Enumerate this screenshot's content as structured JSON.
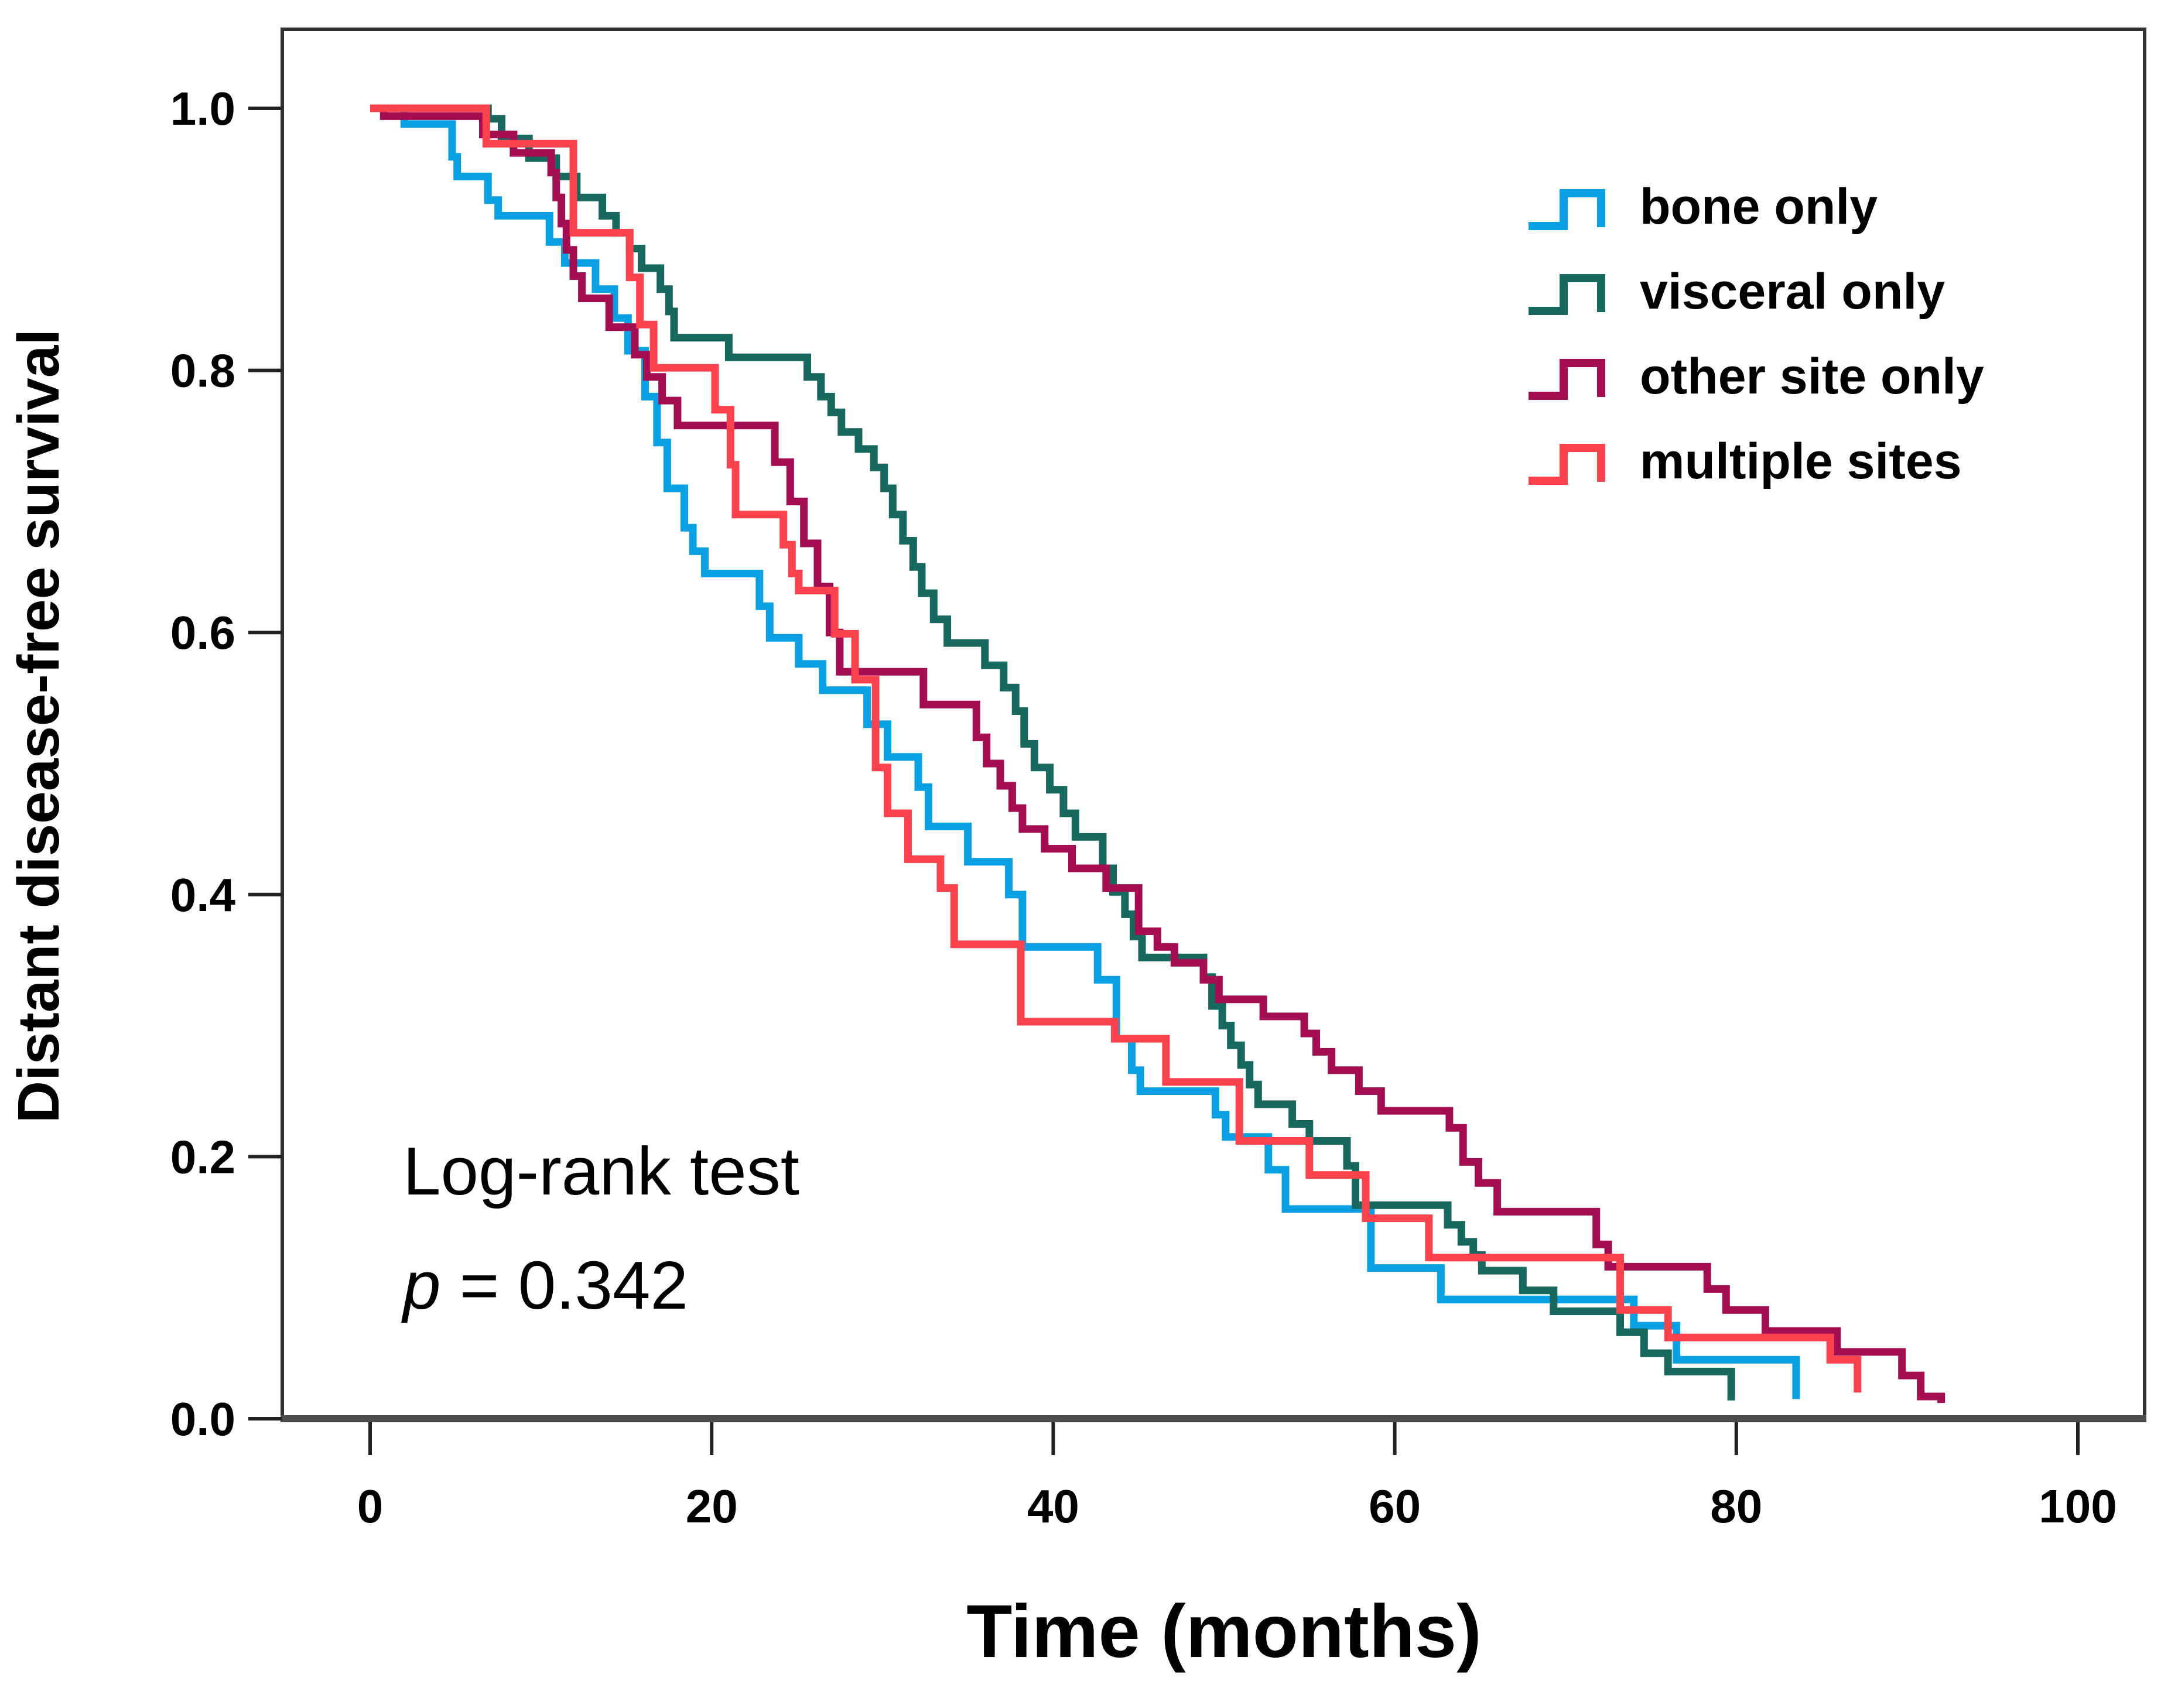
{
  "chart_data": {
    "type": "line",
    "subtype": "kaplan-meier-step",
    "title": "",
    "xlabel": "Time (months)",
    "ylabel": "Distant disease-free survival",
    "xlim": [
      0,
      100
    ],
    "ylim": [
      0.0,
      1.0
    ],
    "xticks": [
      0,
      20,
      40,
      60,
      80,
      100
    ],
    "yticks": [
      "0.0",
      "0.2",
      "0.4",
      "0.6",
      "0.8",
      "1.0"
    ],
    "grid": "off",
    "legend_position": "upper right",
    "annotation": {
      "line1": "Log-rank test",
      "p_symbol": "p",
      "p_rest": " = 0.342"
    },
    "legend": [
      "bone only",
      "visceral only",
      "other site only",
      "multiple sites"
    ],
    "series": [
      {
        "name": "bone only",
        "color": "#0AA1E4",
        "points": [
          [
            0,
            1.0
          ],
          [
            2,
            0.988
          ],
          [
            4.8,
            0.963
          ],
          [
            5.1,
            0.948
          ],
          [
            6.9,
            0.93
          ],
          [
            7.5,
            0.918
          ],
          [
            10.5,
            0.898
          ],
          [
            11.4,
            0.882
          ],
          [
            13.2,
            0.862
          ],
          [
            14.3,
            0.84
          ],
          [
            15.1,
            0.815
          ],
          [
            16.1,
            0.78
          ],
          [
            16.8,
            0.745
          ],
          [
            17.4,
            0.71
          ],
          [
            18.4,
            0.68
          ],
          [
            18.9,
            0.662
          ],
          [
            19.6,
            0.645
          ],
          [
            22.8,
            0.62
          ],
          [
            23.4,
            0.596
          ],
          [
            25.1,
            0.576
          ],
          [
            26.5,
            0.556
          ],
          [
            29.1,
            0.53
          ],
          [
            30.3,
            0.505
          ],
          [
            32.1,
            0.482
          ],
          [
            32.7,
            0.452
          ],
          [
            35,
            0.425
          ],
          [
            37.4,
            0.4
          ],
          [
            38.2,
            0.36
          ],
          [
            42.6,
            0.335
          ],
          [
            43.7,
            0.29
          ],
          [
            44.6,
            0.266
          ],
          [
            45.1,
            0.25
          ],
          [
            49.5,
            0.232
          ],
          [
            50.1,
            0.215
          ],
          [
            52.6,
            0.19
          ],
          [
            53.6,
            0.16
          ],
          [
            58.6,
            0.115
          ],
          [
            62.7,
            0.091
          ],
          [
            74,
            0.071
          ],
          [
            76.5,
            0.045
          ],
          [
            83.5,
            0.015
          ]
        ]
      },
      {
        "name": "visceral only",
        "color": "#17685F",
        "points": [
          [
            0,
            1.0
          ],
          [
            6.9,
            0.992
          ],
          [
            7.7,
            0.977
          ],
          [
            9.3,
            0.962
          ],
          [
            10.9,
            0.948
          ],
          [
            12.1,
            0.932
          ],
          [
            13.6,
            0.918
          ],
          [
            14.4,
            0.905
          ],
          [
            15.2,
            0.893
          ],
          [
            15.9,
            0.878
          ],
          [
            17,
            0.862
          ],
          [
            17.5,
            0.845
          ],
          [
            17.8,
            0.825
          ],
          [
            21,
            0.81
          ],
          [
            25.6,
            0.795
          ],
          [
            26.4,
            0.78
          ],
          [
            27,
            0.768
          ],
          [
            27.6,
            0.753
          ],
          [
            28.6,
            0.74
          ],
          [
            29.5,
            0.726
          ],
          [
            30.1,
            0.71
          ],
          [
            30.6,
            0.69
          ],
          [
            31.2,
            0.67
          ],
          [
            31.8,
            0.65
          ],
          [
            32.3,
            0.63
          ],
          [
            33,
            0.61
          ],
          [
            33.8,
            0.592
          ],
          [
            36,
            0.575
          ],
          [
            37.1,
            0.558
          ],
          [
            37.8,
            0.54
          ],
          [
            38.3,
            0.515
          ],
          [
            38.9,
            0.497
          ],
          [
            39.8,
            0.48
          ],
          [
            40.6,
            0.462
          ],
          [
            41.3,
            0.444
          ],
          [
            42.9,
            0.42
          ],
          [
            43.5,
            0.402
          ],
          [
            44.2,
            0.385
          ],
          [
            44.7,
            0.368
          ],
          [
            45.2,
            0.352
          ],
          [
            48.8,
            0.337
          ],
          [
            49.3,
            0.315
          ],
          [
            49.9,
            0.3
          ],
          [
            50.4,
            0.285
          ],
          [
            51,
            0.27
          ],
          [
            51.5,
            0.255
          ],
          [
            52,
            0.24
          ],
          [
            54,
            0.225
          ],
          [
            55,
            0.212
          ],
          [
            57.2,
            0.193
          ],
          [
            57.7,
            0.163
          ],
          [
            63.1,
            0.148
          ],
          [
            63.9,
            0.135
          ],
          [
            64.6,
            0.125
          ],
          [
            65.1,
            0.113
          ],
          [
            67.5,
            0.098
          ],
          [
            69.3,
            0.082
          ],
          [
            73.2,
            0.066
          ],
          [
            74.6,
            0.05
          ],
          [
            76,
            0.036
          ],
          [
            79.7,
            0.014
          ]
        ]
      },
      {
        "name": "other site only",
        "color": "#A50D53",
        "points": [
          [
            0,
            1.0
          ],
          [
            0.8,
            0.994
          ],
          [
            6.6,
            0.98
          ],
          [
            8.4,
            0.966
          ],
          [
            10.6,
            0.951
          ],
          [
            10.9,
            0.932
          ],
          [
            11.2,
            0.912
          ],
          [
            11.5,
            0.892
          ],
          [
            11.9,
            0.872
          ],
          [
            12.4,
            0.855
          ],
          [
            14,
            0.833
          ],
          [
            15.5,
            0.812
          ],
          [
            16.2,
            0.795
          ],
          [
            17.1,
            0.777
          ],
          [
            18,
            0.758
          ],
          [
            23.7,
            0.73
          ],
          [
            24.6,
            0.7
          ],
          [
            25.4,
            0.668
          ],
          [
            26.2,
            0.635
          ],
          [
            26.9,
            0.6
          ],
          [
            27.5,
            0.57
          ],
          [
            32.4,
            0.545
          ],
          [
            35.5,
            0.52
          ],
          [
            36.1,
            0.5
          ],
          [
            36.9,
            0.483
          ],
          [
            37.6,
            0.466
          ],
          [
            38.2,
            0.45
          ],
          [
            39.5,
            0.435
          ],
          [
            41.1,
            0.42
          ],
          [
            43.1,
            0.405
          ],
          [
            45,
            0.372
          ],
          [
            46.1,
            0.36
          ],
          [
            47.1,
            0.348
          ],
          [
            48.8,
            0.335
          ],
          [
            49.7,
            0.32
          ],
          [
            52.3,
            0.307
          ],
          [
            54.7,
            0.294
          ],
          [
            55.4,
            0.28
          ],
          [
            56.3,
            0.266
          ],
          [
            57.9,
            0.25
          ],
          [
            59.2,
            0.235
          ],
          [
            63.2,
            0.222
          ],
          [
            64,
            0.196
          ],
          [
            64.9,
            0.18
          ],
          [
            66,
            0.158
          ],
          [
            71.8,
            0.133
          ],
          [
            72.5,
            0.116
          ],
          [
            78.3,
            0.099
          ],
          [
            79.4,
            0.083
          ],
          [
            81.7,
            0.067
          ],
          [
            85.9,
            0.051
          ],
          [
            89.7,
            0.033
          ],
          [
            90.8,
            0.017
          ],
          [
            92,
            0.012
          ]
        ]
      },
      {
        "name": "multiple sites",
        "color": "#FB424D",
        "points": [
          [
            0,
            1.0
          ],
          [
            6.8,
            0.973
          ],
          [
            11.9,
            0.905
          ],
          [
            15.2,
            0.871
          ],
          [
            15.8,
            0.835
          ],
          [
            16.6,
            0.802
          ],
          [
            20.2,
            0.77
          ],
          [
            21.1,
            0.728
          ],
          [
            21.4,
            0.69
          ],
          [
            24.2,
            0.667
          ],
          [
            24.7,
            0.645
          ],
          [
            25.1,
            0.632
          ],
          [
            27.2,
            0.599
          ],
          [
            28.4,
            0.564
          ],
          [
            29.6,
            0.497
          ],
          [
            30.3,
            0.462
          ],
          [
            31.5,
            0.427
          ],
          [
            33.4,
            0.405
          ],
          [
            34.2,
            0.362
          ],
          [
            38.1,
            0.303
          ],
          [
            43.6,
            0.29
          ],
          [
            46.6,
            0.257
          ],
          [
            50.9,
            0.212
          ],
          [
            55,
            0.186
          ],
          [
            58.3,
            0.153
          ],
          [
            62,
            0.123
          ],
          [
            73.2,
            0.083
          ],
          [
            76,
            0.062
          ],
          [
            85.5,
            0.045
          ],
          [
            87.1,
            0.02
          ]
        ]
      }
    ],
    "frame_color": "#333333",
    "bottom_axis_color": "#4d4d4d"
  }
}
